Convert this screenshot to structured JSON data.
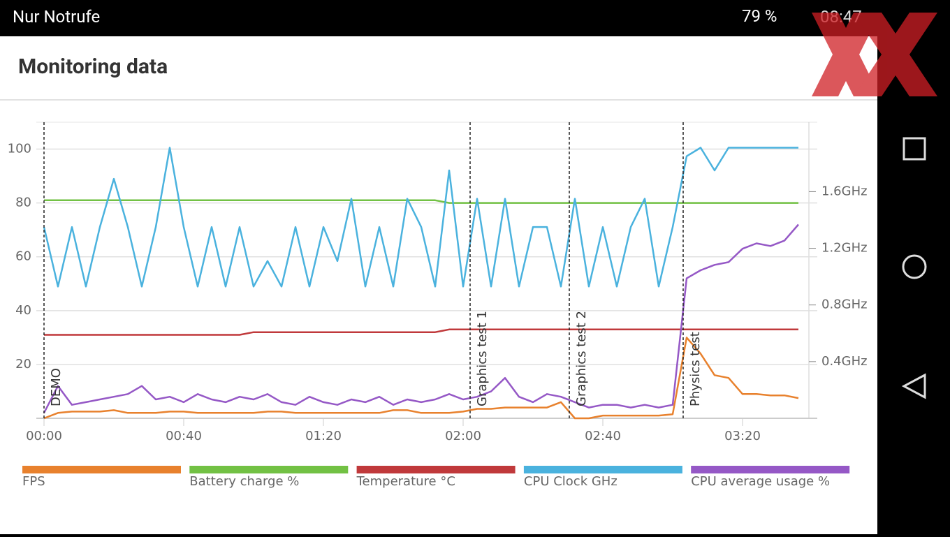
{
  "status_bar": {
    "carrier": "Nur Notrufe",
    "battery": "79 %",
    "time": "08:47"
  },
  "header": {
    "title": "Monitoring data"
  },
  "chart_data": {
    "type": "line",
    "x": [
      0,
      4,
      8,
      12,
      16,
      20,
      24,
      28,
      32,
      36,
      40,
      44,
      48,
      52,
      56,
      60,
      64,
      68,
      72,
      76,
      80,
      84,
      88,
      92,
      96,
      100,
      104,
      108,
      112,
      116,
      120,
      124,
      128,
      132,
      136,
      140,
      144,
      148,
      152,
      156,
      160,
      164,
      168,
      172,
      176,
      180,
      184,
      188,
      192,
      196,
      200,
      204,
      208,
      212,
      216
    ],
    "xlim": [
      0,
      219
    ],
    "xticks": [
      {
        "value": 0,
        "label": "00:00"
      },
      {
        "value": 40,
        "label": "00:40"
      },
      {
        "value": 80,
        "label": "01:20"
      },
      {
        "value": 120,
        "label": "02:00"
      },
      {
        "value": 160,
        "label": "02:40"
      },
      {
        "value": 200,
        "label": "03:20"
      }
    ],
    "ylim": [
      0,
      110
    ],
    "yticks": [
      20,
      40,
      60,
      80,
      100
    ],
    "y2lim": [
      0,
      2.09
    ],
    "y2ticks": [
      {
        "value": 0.4,
        "label": "0.4GHz"
      },
      {
        "value": 0.8,
        "label": "0.8GHz"
      },
      {
        "value": 1.2,
        "label": "1.2GHz"
      },
      {
        "value": 1.6,
        "label": "1.6GHz"
      }
    ],
    "grid": true,
    "markers": [
      {
        "x": 0,
        "label": "DEMO"
      },
      {
        "x": 122,
        "label": "Graphics test 1"
      },
      {
        "x": 150.4,
        "label": "Graphics test 2"
      },
      {
        "x": 183,
        "label": "Physics test"
      }
    ],
    "series": [
      {
        "name": "FPS",
        "color": "#e8812d",
        "values": [
          0,
          2,
          2.5,
          2.5,
          2.5,
          3,
          2,
          2,
          2,
          2.5,
          2.5,
          2,
          2,
          2,
          2,
          2,
          2.5,
          2.5,
          2,
          2,
          2,
          2,
          2,
          2,
          2,
          3,
          3,
          2,
          2,
          2,
          2.5,
          3.5,
          3.5,
          4,
          4,
          4,
          4,
          6,
          0,
          0,
          1,
          1,
          1,
          1,
          1,
          1.5,
          30,
          24,
          16,
          15,
          9,
          9,
          8.5,
          8.5,
          7.5
        ]
      },
      {
        "name": "Battery charge %",
        "color": "#72c144",
        "values": [
          81,
          81,
          81,
          81,
          81,
          81,
          81,
          81,
          81,
          81,
          81,
          81,
          81,
          81,
          81,
          81,
          81,
          81,
          81,
          81,
          81,
          81,
          81,
          81,
          81,
          81,
          81,
          81,
          81,
          80,
          80,
          80,
          80,
          80,
          80,
          80,
          80,
          80,
          80,
          80,
          80,
          80,
          80,
          80,
          80,
          80,
          80,
          80,
          80,
          80,
          80,
          80,
          80,
          80,
          80
        ]
      },
      {
        "name": "Temperature °C",
        "color": "#c0393b",
        "values": [
          31,
          31,
          31,
          31,
          31,
          31,
          31,
          31,
          31,
          31,
          31,
          31,
          31,
          31,
          31,
          32,
          32,
          32,
          32,
          32,
          32,
          32,
          32,
          32,
          32,
          32,
          32,
          32,
          32,
          33,
          33,
          33,
          33,
          33,
          33,
          33,
          33,
          33,
          33,
          33,
          33,
          33,
          33,
          33,
          33,
          33,
          33,
          33,
          33,
          33,
          33,
          33,
          33,
          33,
          33
        ]
      },
      {
        "name": "CPU Clock GHz",
        "color": "#4ab2de",
        "axis": "y2",
        "values": [
          1.35,
          0.93,
          1.35,
          0.93,
          1.35,
          1.69,
          1.35,
          0.93,
          1.35,
          1.91,
          1.35,
          0.93,
          1.35,
          0.93,
          1.35,
          0.93,
          1.11,
          0.93,
          1.35,
          0.93,
          1.35,
          1.11,
          1.55,
          0.93,
          1.35,
          0.93,
          1.55,
          1.35,
          0.93,
          1.75,
          0.93,
          1.55,
          0.93,
          1.55,
          0.93,
          1.35,
          1.35,
          0.93,
          1.55,
          0.93,
          1.35,
          0.93,
          1.35,
          1.55,
          0.93,
          1.35,
          1.85,
          1.91,
          1.75,
          1.91,
          1.91,
          1.91,
          1.91,
          1.91,
          1.91
        ]
      },
      {
        "name": "CPU average usage %",
        "color": "#9558c6",
        "values": [
          2,
          12,
          5,
          6,
          7,
          8,
          9,
          12,
          7,
          8,
          6,
          9,
          7,
          6,
          8,
          7,
          9,
          6,
          5,
          8,
          6,
          5,
          7,
          6,
          8,
          5,
          7,
          6,
          7,
          9,
          7,
          8,
          10,
          15,
          8,
          6,
          9,
          8,
          6,
          4,
          5,
          5,
          4,
          5,
          4,
          5,
          52,
          55,
          57,
          58,
          63,
          65,
          64,
          66,
          72
        ]
      }
    ]
  }
}
